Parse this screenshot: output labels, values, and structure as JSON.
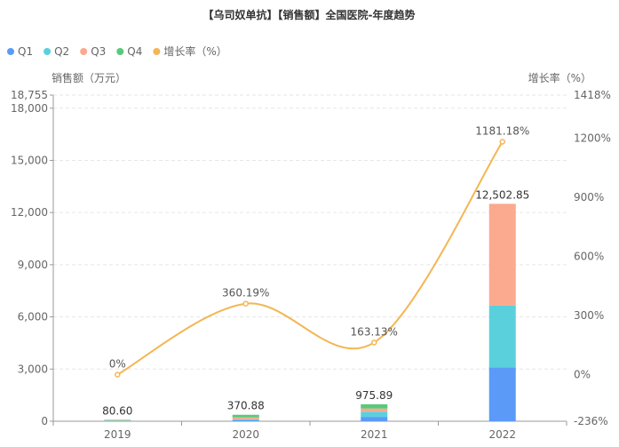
{
  "chart_data": {
    "type": "bar",
    "title": "【乌司奴单抗】【销售额】全国医院-年度趋势",
    "categories": [
      "2019",
      "2020",
      "2021",
      "2022"
    ],
    "series": [
      {
        "name": "Q1",
        "color": "#5b9bf7",
        "values": [
          10,
          50,
          250,
          3100
        ]
      },
      {
        "name": "Q2",
        "color": "#5bd0dd",
        "values": [
          15,
          60,
          300,
          3550
        ]
      },
      {
        "name": "Q3",
        "color": "#fba98f",
        "values": [
          25,
          110,
          180,
          5852.85
        ]
      },
      {
        "name": "Q4",
        "color": "#59c97a",
        "values": [
          30.6,
          150.88,
          245.89,
          0
        ]
      }
    ],
    "totals": [
      "80.60",
      "370.88",
      "975.89",
      "12,502.85"
    ],
    "growth": {
      "name": "增长率（%）",
      "color": "#f4b654",
      "values": [
        0,
        360.19,
        163.13,
        1181.18
      ],
      "labels": [
        "0%",
        "360.19%",
        "163.13%",
        "1181.18%"
      ]
    },
    "y_left": {
      "name": "销售额（万元）",
      "min": 0,
      "max": 18755,
      "ticks": [
        0,
        3000,
        6000,
        9000,
        12000,
        15000,
        18000,
        18755
      ],
      "tick_labels": [
        "0",
        "3,000",
        "6,000",
        "9,000",
        "12,000",
        "15,000",
        "18,000",
        "18,755"
      ]
    },
    "y_right": {
      "name": "增长率（%）",
      "min": -236,
      "max": 1418,
      "ticks": [
        -236,
        0,
        300,
        600,
        900,
        1200,
        1418
      ],
      "tick_labels": [
        "-236%",
        "0%",
        "300%",
        "600%",
        "900%",
        "1200%",
        "1418%"
      ]
    },
    "grid": true,
    "legend_position": "top-left"
  }
}
